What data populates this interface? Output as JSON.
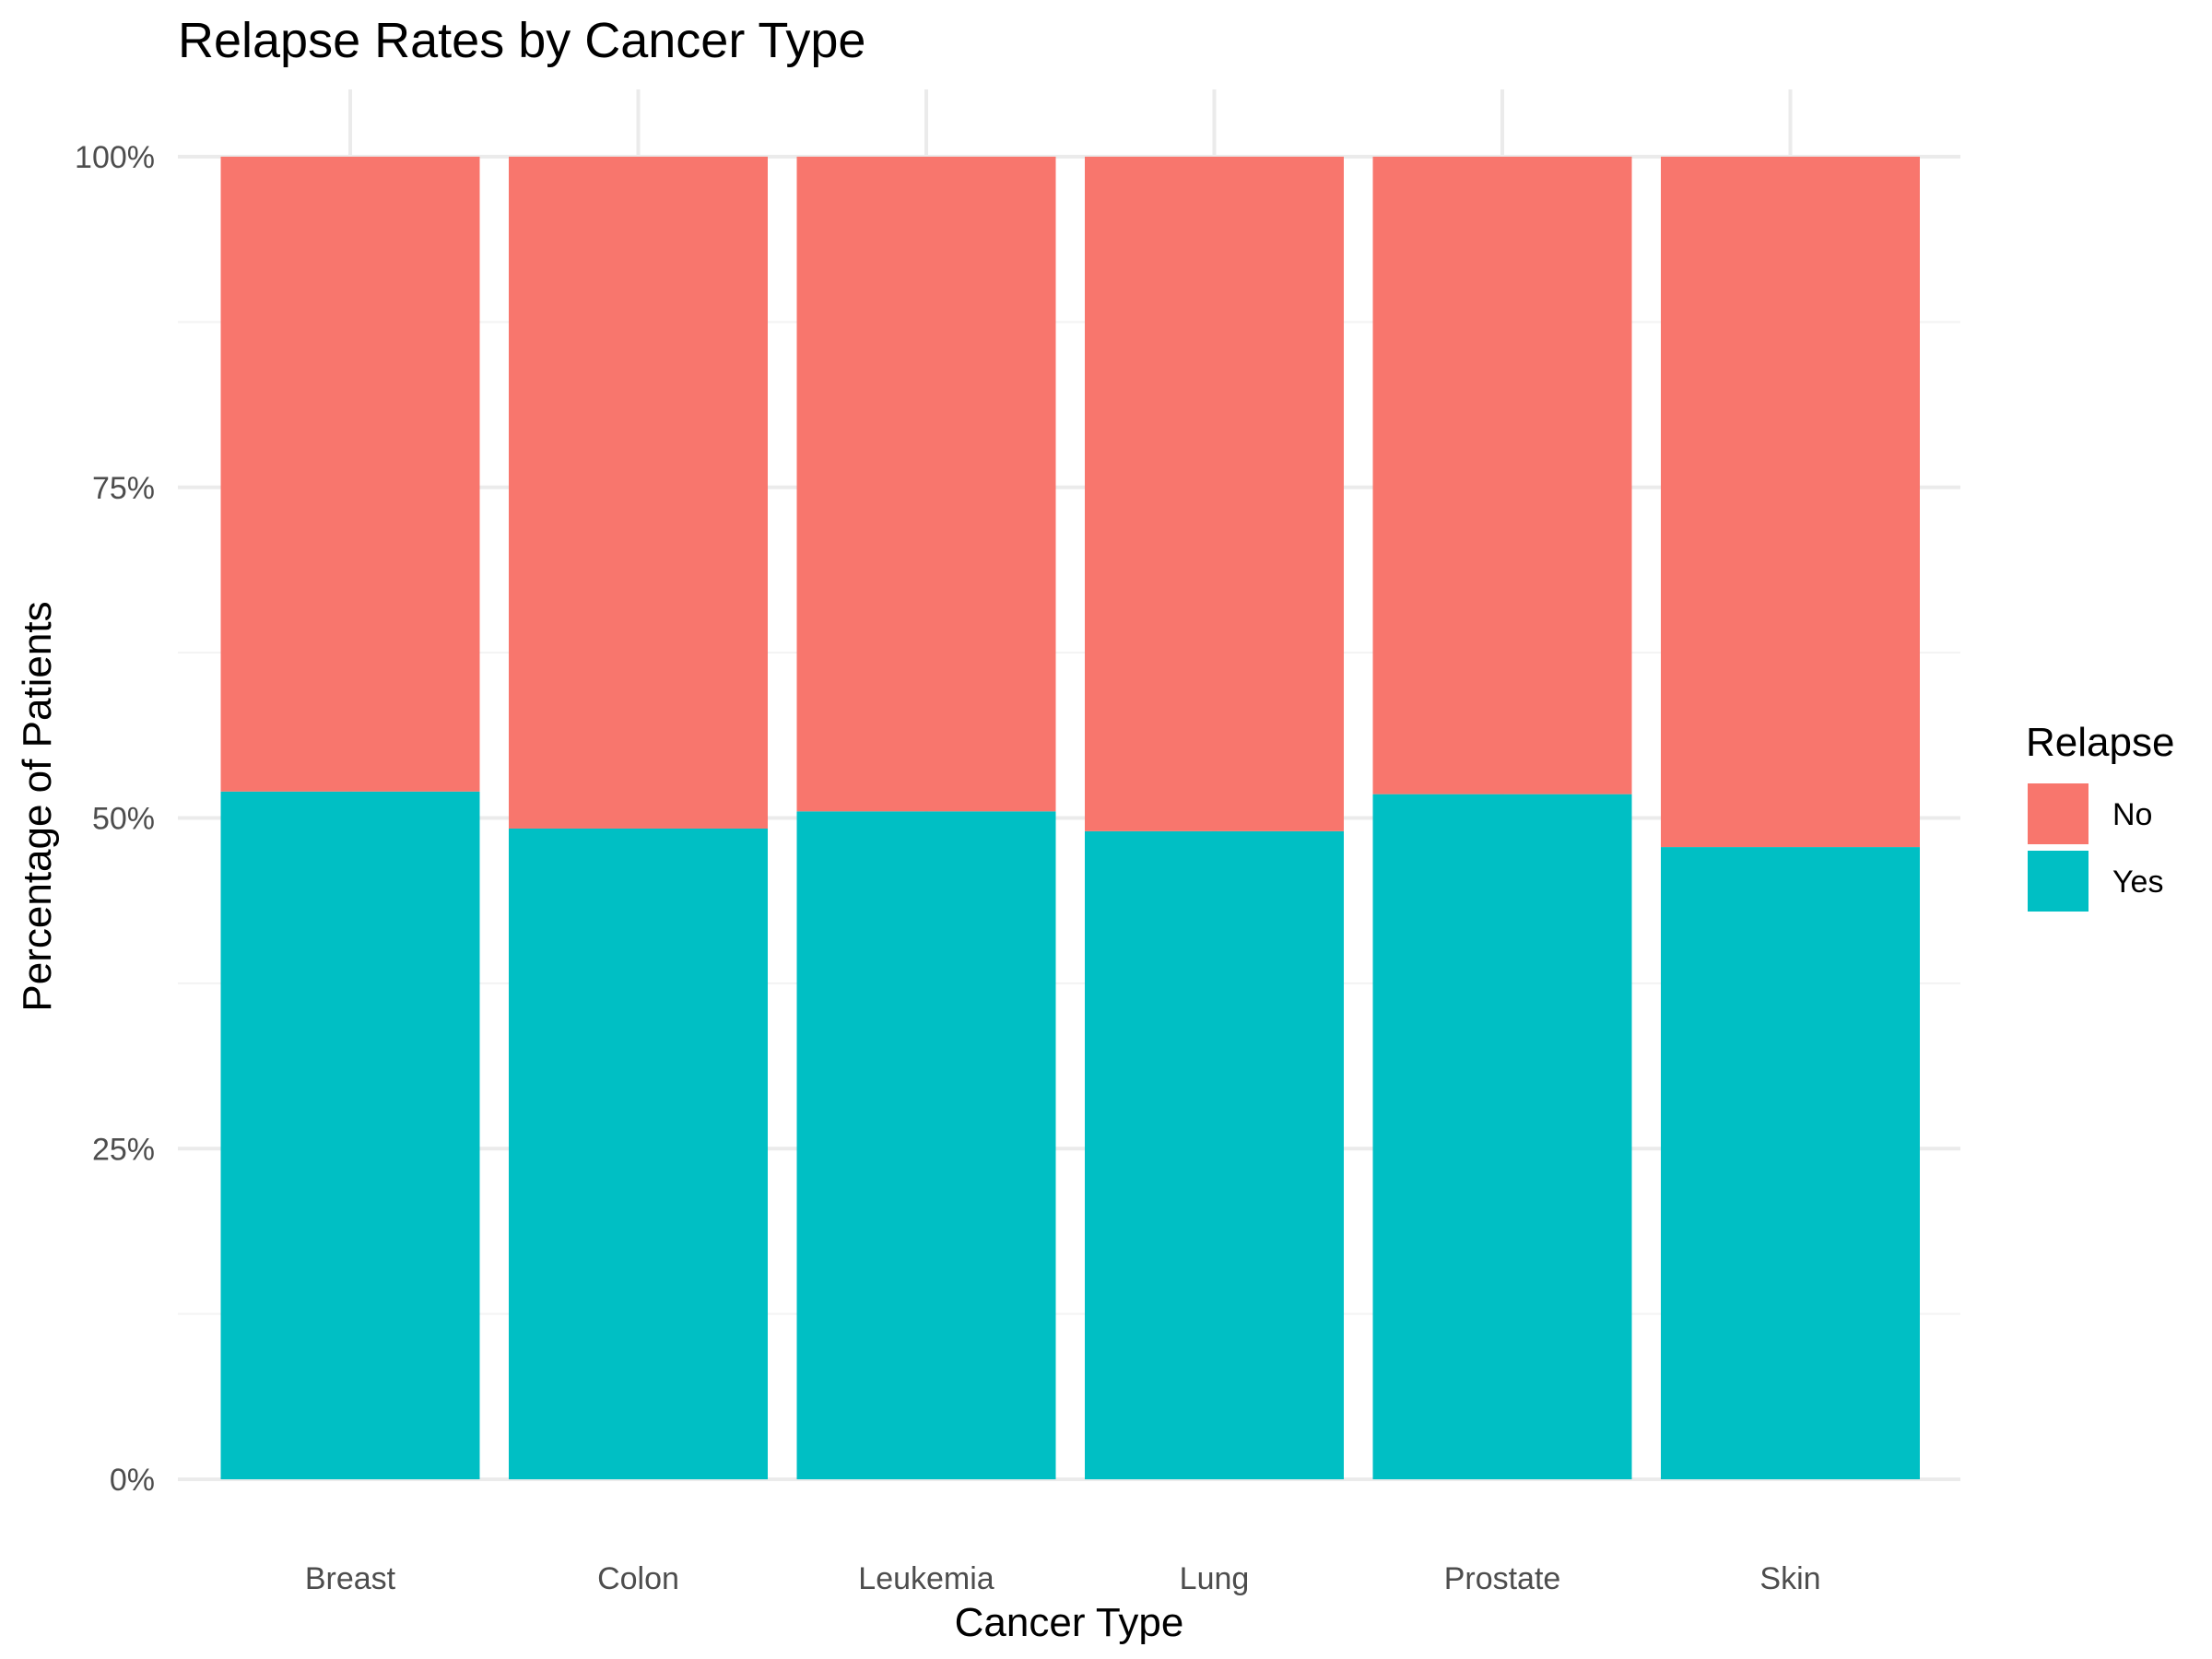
{
  "chart_data": {
    "type": "bar",
    "stacked": true,
    "title": "Relapse Rates by Cancer Type",
    "xlabel": "Cancer Type",
    "ylabel": "Percentage of Patients",
    "categories": [
      "Breast",
      "Colon",
      "Leukemia",
      "Lung",
      "Prostate",
      "Skin"
    ],
    "ylim": [
      0,
      1
    ],
    "yticks": [
      {
        "value": 0,
        "label": "0%"
      },
      {
        "value": 0.25,
        "label": "25%"
      },
      {
        "value": 0.5,
        "label": "50%"
      },
      {
        "value": 0.75,
        "label": "75%"
      },
      {
        "value": 1.0,
        "label": "100%"
      }
    ],
    "series": [
      {
        "name": "Yes",
        "color": "#00BFC4",
        "values": [
          0.52,
          0.492,
          0.505,
          0.49,
          0.518,
          0.478
        ]
      },
      {
        "name": "No",
        "color": "#F8766D",
        "values": [
          0.48,
          0.508,
          0.495,
          0.51,
          0.482,
          0.522
        ]
      }
    ],
    "legend": {
      "title": "Relapse",
      "position": "right",
      "entries": [
        {
          "label": "No",
          "color": "#F8766D"
        },
        {
          "label": "Yes",
          "color": "#00BFC4"
        }
      ]
    },
    "grid": true
  }
}
